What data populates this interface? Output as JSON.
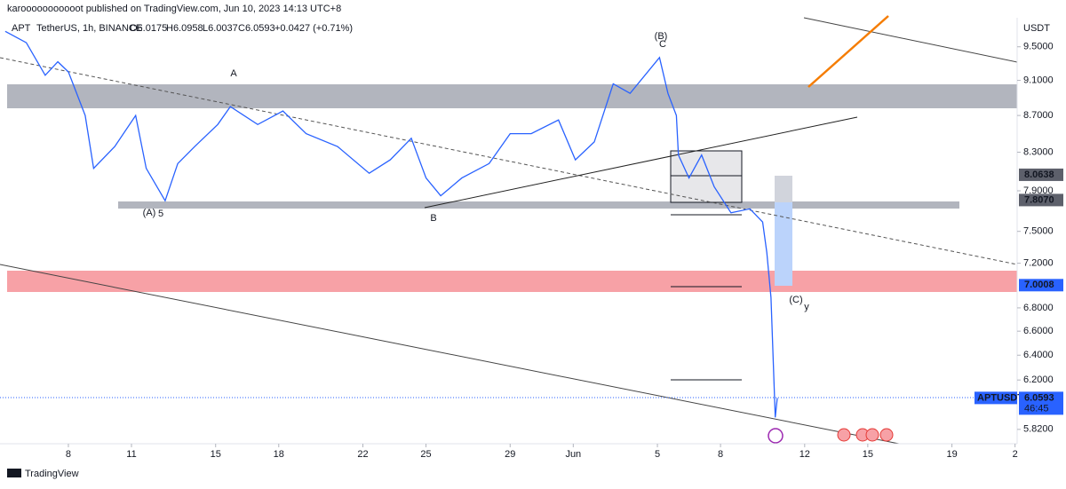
{
  "header": {
    "publisher": "karooooooooooot published on TradingView.com, Jun 10, 2023 14:13 UTC+8",
    "symbol": "APT",
    "instrument": "TetherUS, 1h, BINANCE",
    "ohlc": [
      "O6.0175",
      "H6.0958",
      "L6.0037",
      "C6.0593",
      "+0.0427 (+0.71%)"
    ]
  },
  "chart_data": {
    "type": "line",
    "log_scale": true,
    "y_axis_unit": "USDT",
    "x": [
      5.0,
      6.0,
      6.9,
      7.5,
      8.0,
      8.8,
      9.2,
      10.2,
      11.2,
      11.7,
      12.6,
      13.2,
      14.0,
      15.1,
      15.7,
      17.0,
      18.2,
      19.3,
      20.8,
      22.3,
      23.3,
      24.3,
      25.0,
      25.7,
      26.7,
      28.0,
      29.0,
      30.0,
      31.3,
      32.1,
      33.0,
      33.9,
      34.7,
      36.1,
      36.5,
      36.9,
      37.0,
      37.5,
      38.1,
      38.7,
      39.5,
      40.4,
      41.0,
      41.2,
      41.4,
      41.6,
      41.7
    ],
    "series": [
      {
        "name": "APTUSDT",
        "color": "#2962ff",
        "values": [
          9.69,
          9.55,
          9.16,
          9.32,
          9.2,
          8.7,
          8.13,
          8.36,
          8.7,
          8.13,
          7.8,
          8.18,
          8.36,
          8.6,
          8.8,
          8.6,
          8.75,
          8.5,
          8.36,
          8.08,
          8.22,
          8.45,
          8.03,
          7.85,
          8.03,
          8.18,
          8.5,
          8.5,
          8.65,
          8.22,
          8.41,
          9.06,
          8.95,
          9.37,
          8.95,
          8.7,
          8.27,
          8.03,
          8.27,
          7.94,
          7.68,
          7.72,
          7.59,
          7.3,
          6.89,
          5.91,
          6.0593
        ]
      }
    ],
    "xlim": [
      4.75,
      53.1
    ],
    "ylim": [
      5.74,
      9.86
    ],
    "xticks": [
      8,
      11,
      15,
      18,
      22,
      25,
      29,
      {
        "value": 32,
        "label": "Jun"
      },
      {
        "value": 36,
        "label": "5"
      },
      {
        "value": 39,
        "label": "8"
      },
      {
        "value": 43,
        "label": "12"
      },
      {
        "value": 46,
        "label": "15"
      },
      {
        "value": 50,
        "label": "19"
      },
      {
        "value": 53,
        "label": "2"
      }
    ],
    "yticks": [
      {
        "value": 9.5,
        "label": "9.5000"
      },
      {
        "value": 9.1,
        "label": "9.1000"
      },
      {
        "value": 8.7,
        "label": "8.7000"
      },
      {
        "value": 8.3,
        "label": "8.3000"
      },
      {
        "value": 7.9,
        "label": "7.9000"
      },
      {
        "value": 7.5,
        "label": "7.5000"
      },
      {
        "value": 7.2,
        "label": "7.2000"
      },
      {
        "value": 6.8,
        "label": "6.8000"
      },
      {
        "value": 6.6,
        "label": "6.6000"
      },
      {
        "value": 6.4,
        "label": "6.4000"
      },
      {
        "value": 6.2,
        "label": "6.2000"
      },
      {
        "value": 5.82,
        "label": "5.8200"
      }
    ],
    "price_markers": [
      8.0638,
      {
        "value": 7.807,
        "label": "7.8070"
      },
      7.0008
    ],
    "price_marker_colors": [
      "#5d606b",
      "#5d606b",
      "#2962ff"
    ],
    "last_price": {
      "symbol": "APTUSDT",
      "value": 6.0593,
      "countdown": "46:45"
    },
    "annotations": [
      "(A)",
      "5",
      "A",
      "B",
      "(B)",
      "C",
      "(C)",
      "y"
    ]
  },
  "footer": {
    "brand": "TradingView"
  }
}
